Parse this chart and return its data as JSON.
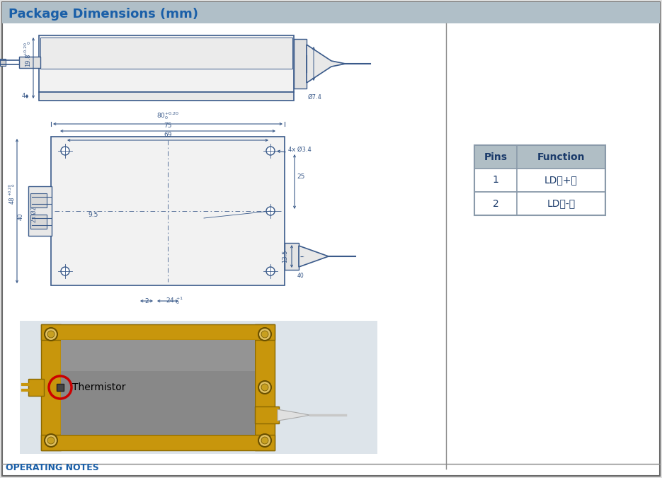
{
  "title": "Package Dimensions (mm)",
  "title_color": "#1a5fa8",
  "title_bg_color": "#b0bfc8",
  "bg_color": "#ffffff",
  "border_color": "#888888",
  "drawing_color": "#3a5a8a",
  "dim_color": "#3a5a8a",
  "table_header_bg": "#b0bec5",
  "table_border_color": "#8a9aaa",
  "table_header_color": "#1a3a6a",
  "table_data_color": "#1a3a6a",
  "table_pins": [
    "1",
    "2"
  ],
  "table_functions": [
    "LD（+）",
    "LD（-）"
  ],
  "bottom_text_color": "#1a5fa8",
  "bottom_text": "OPERATING NOTES",
  "thermistor_label": "Thermistor",
  "thermistor_circle_color": "#cc0000"
}
